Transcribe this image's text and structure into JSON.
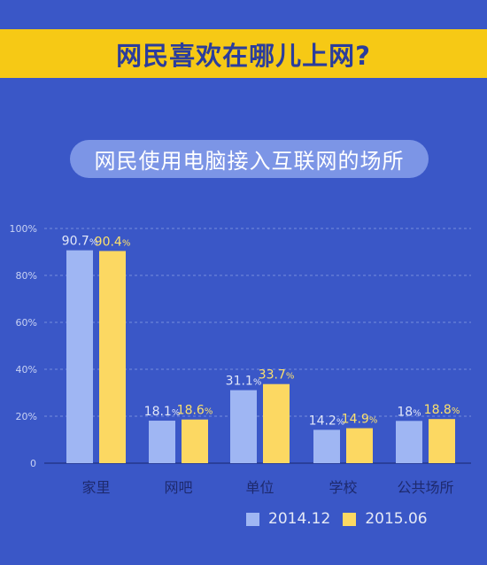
{
  "header": {
    "title": "网民喜欢在哪儿上网?"
  },
  "subtitle": "网民使用电脑接入互联网的场所",
  "colors": {
    "background": "#3a57c7",
    "banner": "#f6c915",
    "series_2014": "#9fb6f3",
    "series_2015": "#fcd862",
    "label_2014": "#e2e7f8",
    "label_2015": "#fbe06d"
  },
  "chart_data": {
    "type": "bar",
    "categories": [
      "家里",
      "网吧",
      "单位",
      "学校",
      "公共场所"
    ],
    "series": [
      {
        "name": "2014.12",
        "values": [
          90.7,
          18.1,
          31.1,
          14.2,
          18.0
        ],
        "labels": [
          "90.7%",
          "18.1%",
          "31.1%",
          "14.2%",
          "18%"
        ]
      },
      {
        "name": "2015.06",
        "values": [
          90.4,
          18.6,
          33.7,
          14.9,
          18.8
        ],
        "labels": [
          "90.4%",
          "18.6%",
          "33.7%",
          "14.9%",
          "18.8%"
        ]
      }
    ],
    "yticks": [
      "0",
      "20%",
      "40%",
      "60%",
      "80%",
      "100%"
    ],
    "ylim": [
      0,
      100
    ],
    "grid": true,
    "legend_position": "bottom-right"
  },
  "legend": [
    {
      "label": "2014.12"
    },
    {
      "label": "2015.06"
    }
  ]
}
